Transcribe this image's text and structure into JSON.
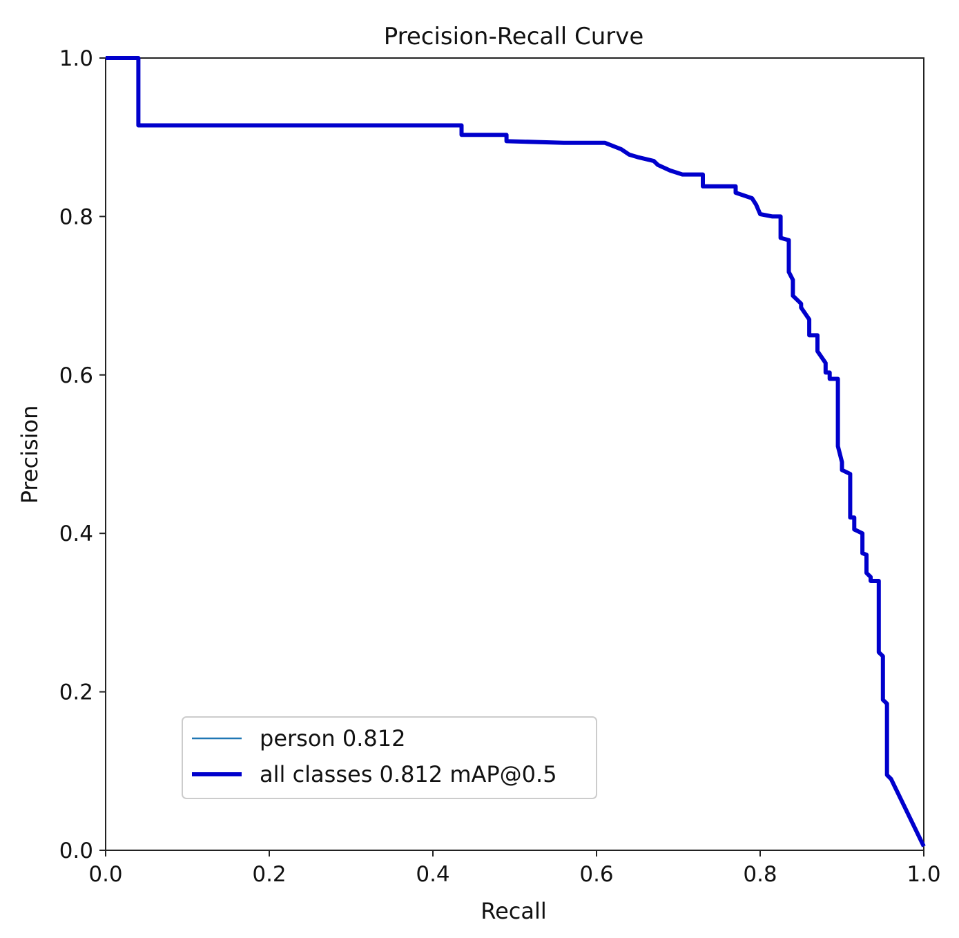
{
  "chart_data": {
    "type": "line",
    "title": "Precision-Recall Curve",
    "xlabel": "Recall",
    "ylabel": "Precision",
    "xlim": [
      0.0,
      1.0
    ],
    "ylim": [
      0.0,
      1.0
    ],
    "xticks": [
      "0.0",
      "0.2",
      "0.4",
      "0.6",
      "0.8",
      "1.0"
    ],
    "yticks": [
      "0.0",
      "0.2",
      "0.4",
      "0.6",
      "0.8",
      "1.0"
    ],
    "grid": false,
    "legend_position": "lower-left",
    "series": [
      {
        "name": "person 0.812",
        "color": "#1f77b4",
        "line_width": "thin",
        "x": [],
        "y": []
      },
      {
        "name": "all classes 0.812 mAP@0.5",
        "color": "#0000cc",
        "line_width": "thick",
        "x": [
          0.0,
          0.04,
          0.04,
          0.435,
          0.435,
          0.49,
          0.49,
          0.56,
          0.61,
          0.63,
          0.64,
          0.65,
          0.67,
          0.675,
          0.69,
          0.705,
          0.73,
          0.73,
          0.77,
          0.77,
          0.79,
          0.795,
          0.8,
          0.815,
          0.825,
          0.825,
          0.835,
          0.835,
          0.84,
          0.84,
          0.85,
          0.85,
          0.86,
          0.86,
          0.87,
          0.87,
          0.88,
          0.88,
          0.885,
          0.885,
          0.895,
          0.895,
          0.9,
          0.9,
          0.91,
          0.91,
          0.915,
          0.915,
          0.925,
          0.925,
          0.93,
          0.93,
          0.935,
          0.935,
          0.945,
          0.945,
          0.95,
          0.95,
          0.955,
          0.955,
          0.96,
          0.96,
          1.0
        ],
        "y": [
          1.0,
          1.0,
          0.915,
          0.915,
          0.903,
          0.903,
          0.895,
          0.893,
          0.893,
          0.885,
          0.878,
          0.875,
          0.87,
          0.865,
          0.858,
          0.853,
          0.853,
          0.838,
          0.838,
          0.83,
          0.823,
          0.815,
          0.803,
          0.8,
          0.8,
          0.773,
          0.77,
          0.73,
          0.72,
          0.7,
          0.69,
          0.685,
          0.67,
          0.65,
          0.65,
          0.63,
          0.615,
          0.603,
          0.603,
          0.595,
          0.595,
          0.51,
          0.49,
          0.48,
          0.475,
          0.42,
          0.42,
          0.405,
          0.4,
          0.375,
          0.373,
          0.35,
          0.345,
          0.34,
          0.34,
          0.25,
          0.245,
          0.19,
          0.185,
          0.095,
          0.09,
          0.09,
          0.005
        ]
      }
    ]
  }
}
